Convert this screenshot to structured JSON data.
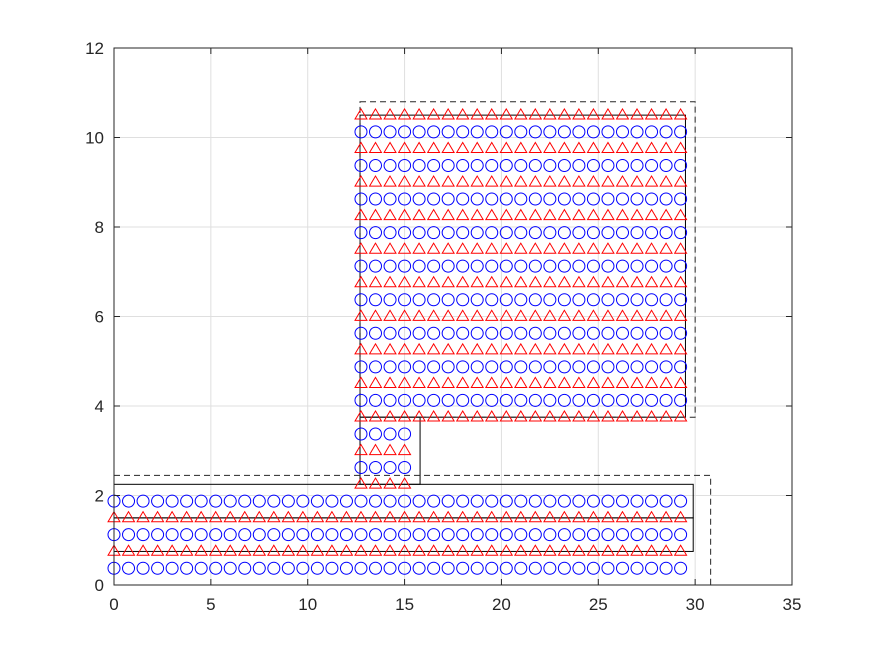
{
  "chart_data": {
    "type": "scatter",
    "title": "",
    "xlabel": "",
    "ylabel": "",
    "xlim": [
      0,
      35
    ],
    "ylim": [
      0,
      12
    ],
    "x_ticks": [
      "0",
      "5",
      "10",
      "15",
      "20",
      "25",
      "30",
      "35"
    ],
    "y_ticks": [
      "0",
      "2",
      "4",
      "6",
      "8",
      "10",
      "12"
    ],
    "x_tick_values": [
      0,
      5,
      10,
      15,
      20,
      25,
      30,
      35
    ],
    "y_tick_values": [
      0,
      2,
      4,
      6,
      8,
      10,
      12
    ],
    "grid": true,
    "colors": {
      "circle": "#0000ff",
      "triangle": "#ff0000",
      "rect_solid": "#000000",
      "rect_dashed": "#262626",
      "grid": "#dfdfdf",
      "axis": "#262626"
    },
    "series": [
      {
        "marker": "circle",
        "color": "#0000ff",
        "groups": [
          {
            "x_start": 0,
            "x_step": 0.75,
            "x_count": 40,
            "y_values": [
              0.375
            ]
          },
          {
            "x_start": 0,
            "x_step": 0.75,
            "x_count": 40,
            "y_values": [
              1.125,
              1.875
            ]
          },
          {
            "x_start": 12.75,
            "x_step": 0.75,
            "x_count": 4,
            "y_values": [
              2.625,
              3.375
            ]
          },
          {
            "x_start": 12.75,
            "x_step": 0.75,
            "x_count": 23,
            "y_values": [
              4.125,
              4.875,
              5.625,
              6.375,
              7.125,
              7.875,
              8.625,
              9.375,
              10.125
            ]
          }
        ]
      },
      {
        "marker": "triangle",
        "color": "#ff0000",
        "groups": [
          {
            "x_start": 0,
            "x_step": 0.75,
            "x_count": 40,
            "y_values": [
              0.75,
              1.5
            ]
          },
          {
            "x_start": 12.75,
            "x_step": 0.75,
            "x_count": 4,
            "y_values": [
              2.25,
              3.0
            ]
          },
          {
            "x_start": 12.75,
            "x_step": 0.75,
            "x_count": 23,
            "y_values": [
              3.75,
              4.5,
              5.25,
              6.0,
              6.75,
              7.5,
              8.25,
              9.0,
              9.75,
              10.5
            ]
          }
        ]
      }
    ],
    "rectangles": [
      {
        "style": "solid",
        "x0": 0,
        "x1": 29.9,
        "y0": 0.75,
        "y1": 1.5
      },
      {
        "style": "solid",
        "x0": 0,
        "x1": 29.9,
        "y0": 1.5,
        "y1": 2.25
      },
      {
        "style": "solid",
        "x0": 12.7,
        "x1": 15.8,
        "y0": 2.25,
        "y1": 3.75
      },
      {
        "style": "solid",
        "x0": 12.7,
        "x1": 29.5,
        "y0": 3.75,
        "y1": 10.5
      },
      {
        "style": "dashed",
        "x0": 0,
        "x1": 30.8,
        "y0": 0,
        "y1": 2.45
      },
      {
        "style": "dashed",
        "x0": 12.7,
        "x1": 30.0,
        "y0": 3.75,
        "y1": 10.8
      }
    ]
  }
}
